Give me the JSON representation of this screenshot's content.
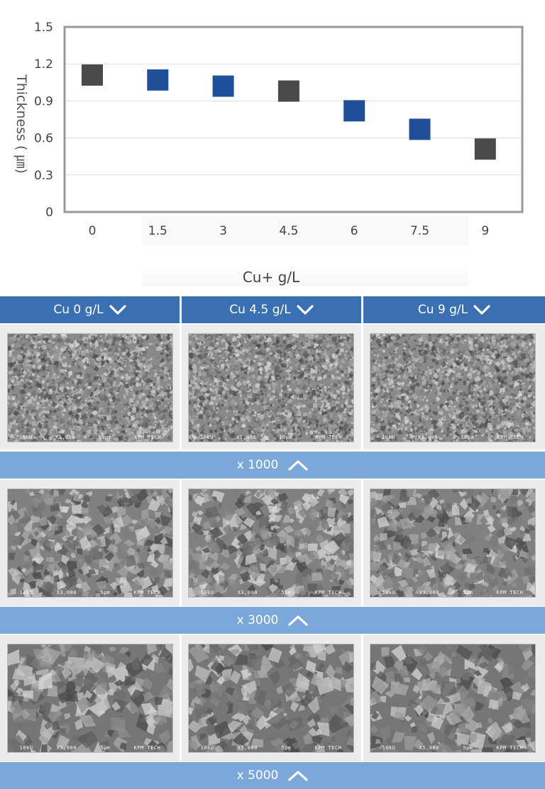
{
  "chart_data": {
    "type": "scatter",
    "ylabel": "Thickness ( ㎛)",
    "xlabel": "Cu+ g/L",
    "x_ticks": [
      "0",
      "1.5",
      "3",
      "4.5",
      "6",
      "7.5",
      "9"
    ],
    "y_ticks": [
      "1.5",
      "1.2",
      "0.9",
      "0.6",
      "0.3",
      "0"
    ],
    "ylim": [
      0,
      1.5
    ],
    "points": [
      {
        "x": 0,
        "y": 1.11,
        "color": "#4a4a4a"
      },
      {
        "x": 1.5,
        "y": 1.07,
        "color": "#1e4f98"
      },
      {
        "x": 3,
        "y": 1.02,
        "color": "#1e4f98"
      },
      {
        "x": 4.5,
        "y": 0.98,
        "color": "#4a4a4a"
      },
      {
        "x": 6,
        "y": 0.82,
        "color": "#1e4f98"
      },
      {
        "x": 7.5,
        "y": 0.67,
        "color": "#1e4f98"
      },
      {
        "x": 9,
        "y": 0.51,
        "color": "#4a4a4a"
      }
    ],
    "grid": true
  },
  "columns": [
    {
      "label": "Cu 0 g/L"
    },
    {
      "label": "Cu 4.5 g/L"
    },
    {
      "label": "Cu 9 g/L"
    }
  ],
  "bands": [
    {
      "label": "x 1000"
    },
    {
      "label": "x 3000"
    },
    {
      "label": "x 5000"
    }
  ],
  "sem_rows": [
    [
      {
        "kv": "10kU",
        "mag": "X1,000",
        "scale": "10μm",
        "maker": "KPM TECH"
      },
      {
        "kv": "10kU",
        "mag": "X1,000",
        "scale": "10μm",
        "maker": "KPM TECH"
      },
      {
        "kv": "10kU",
        "mag": "X1,000",
        "scale": "10μm",
        "maker": "KPM TECH"
      }
    ],
    [
      {
        "kv": "10kU",
        "mag": "X3,000",
        "scale": "5μm",
        "maker": "KPM TECH"
      },
      {
        "kv": "10kU",
        "mag": "X3,000",
        "scale": "5μm",
        "maker": "KPM TECH"
      },
      {
        "kv": "10kU",
        "mag": "X3,000",
        "scale": "5μm",
        "maker": "KPM TECH"
      }
    ],
    [
      {
        "kv": "10kU",
        "mag": "X5,000",
        "scale": "5μm",
        "maker": "KPM TECH"
      },
      {
        "kv": "10kU",
        "mag": "X5,000",
        "scale": "5μm",
        "maker": "KPM TECH"
      },
      {
        "kv": "10kU",
        "mag": "X5,000",
        "scale": "5μm",
        "maker": "KPM TECH"
      }
    ]
  ],
  "colors": {
    "header": "#3a70b3",
    "band": "#7ba8d9",
    "point_dark": "#4a4a4a",
    "point_blue": "#1e4f98"
  }
}
